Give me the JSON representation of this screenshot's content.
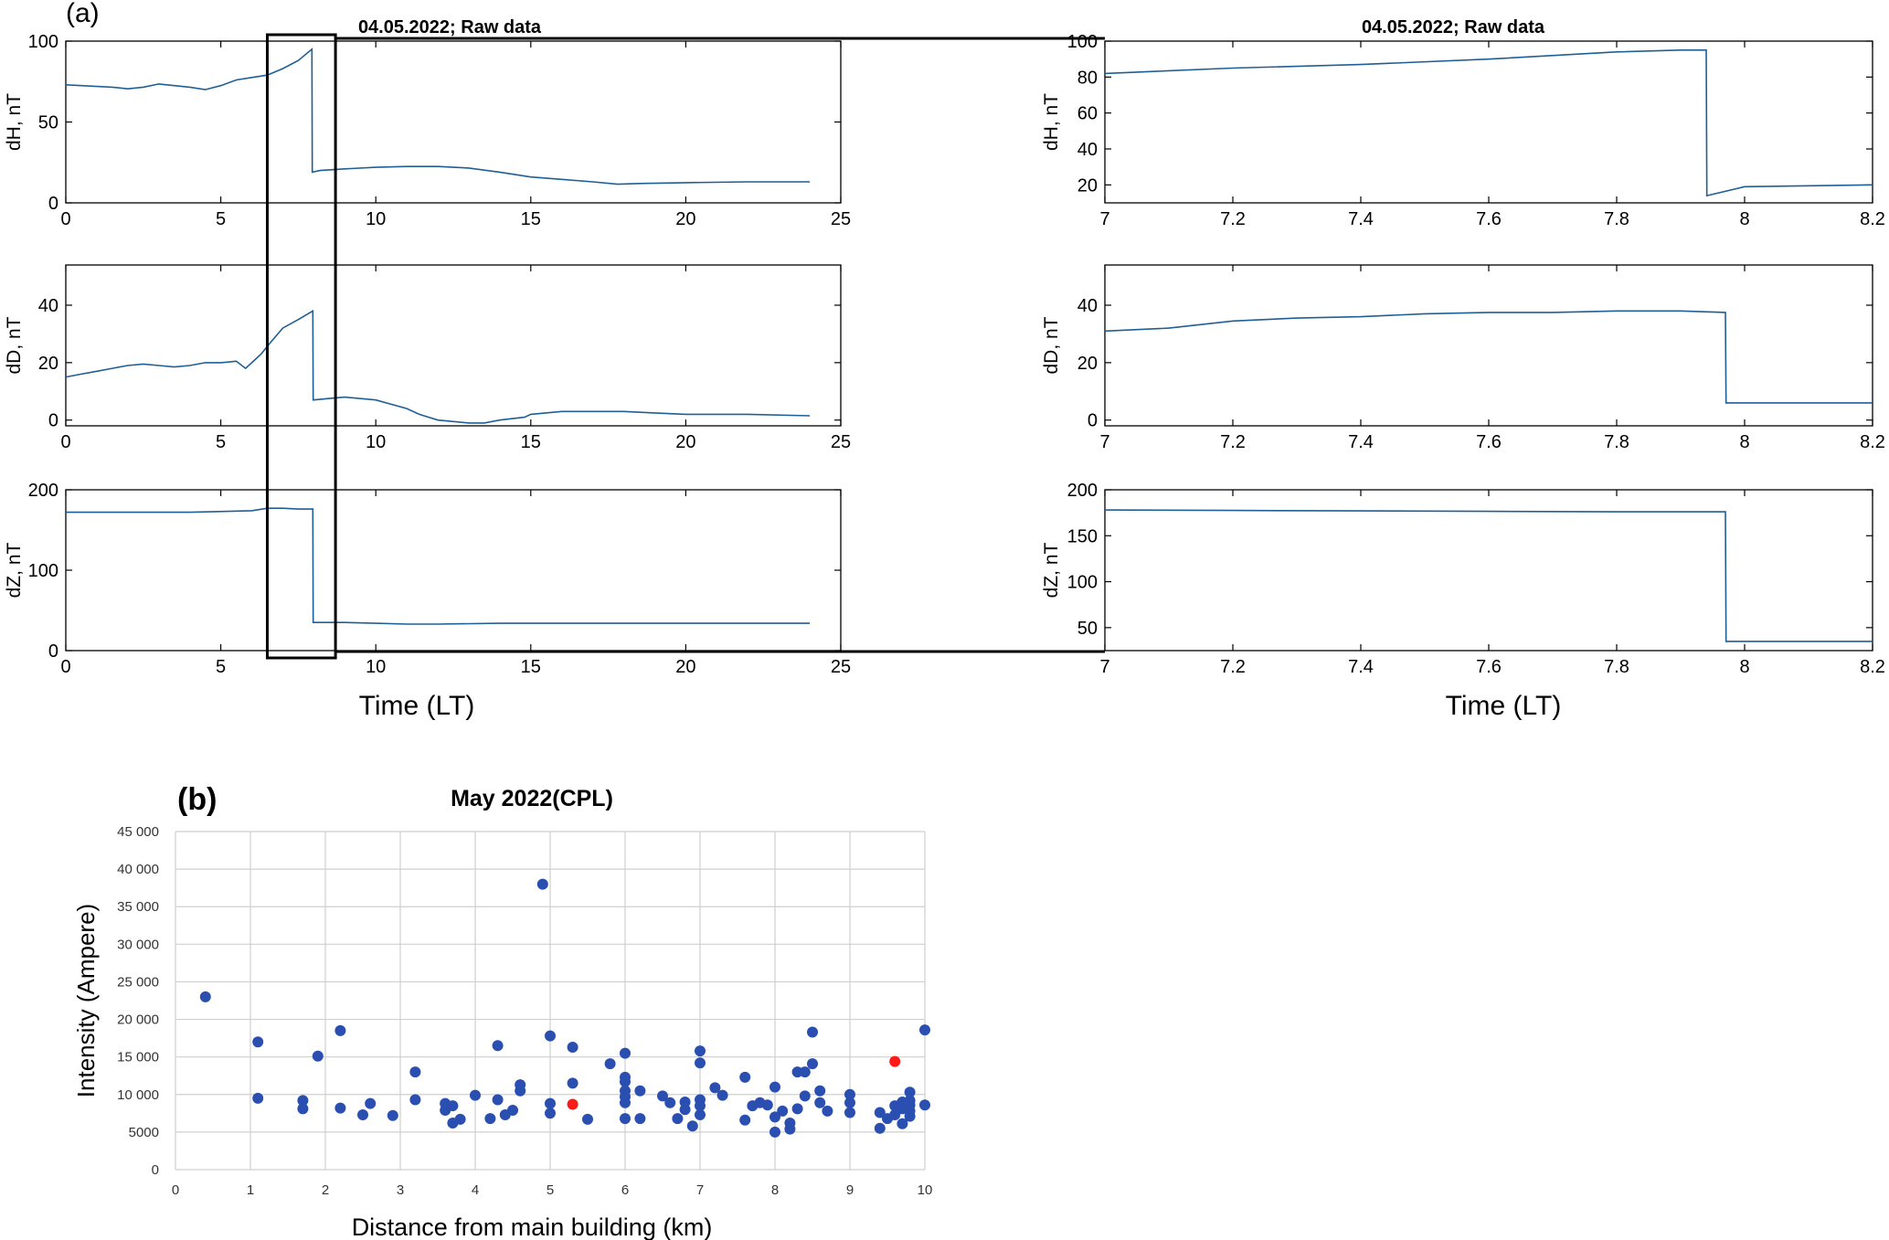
{
  "figure": {
    "panel_a_label": "(a)",
    "panel_b_label": "(b)",
    "colors": {
      "trace": "#1f5f96",
      "scatter_blue": "#2a4fb0",
      "scatter_red": "#ff1a1a",
      "grid": "#cfcfcf"
    }
  },
  "chart_data": [
    {
      "id": "a-left",
      "type": "line",
      "title": "04.05.2022;  Raw data",
      "xlabel": "Time (LT)",
      "xlim": [
        0,
        25
      ],
      "xticks": [
        0,
        5,
        10,
        15,
        20,
        25
      ],
      "highlight_box": {
        "x_from": 6.5,
        "x_to": 8.7
      },
      "panels": [
        {
          "ylabel": "dH, nT",
          "ylim": [
            0,
            100
          ],
          "yticks": [
            0,
            50,
            100
          ],
          "series": [
            {
              "x": [
                0,
                0.5,
                1,
                1.5,
                2,
                2.5,
                3,
                3.5,
                4,
                4.5,
                5,
                5.5,
                6,
                6.5,
                7,
                7.5,
                7.94,
                7.95,
                8.2,
                9,
                10,
                11,
                12,
                13,
                14,
                15,
                16,
                17,
                17.8,
                18.5,
                20,
                22,
                24
              ],
              "y": [
                73,
                72.5,
                72,
                71.5,
                70.5,
                71.5,
                73.5,
                72.5,
                71.5,
                70,
                72.5,
                76,
                77.5,
                79,
                83,
                88,
                95,
                19,
                20,
                21,
                22,
                22.5,
                22.5,
                21.5,
                19,
                16,
                14.5,
                13,
                11.5,
                12,
                12.5,
                13,
                13
              ]
            }
          ]
        },
        {
          "ylabel": "dD, nT",
          "ylim": [
            -2,
            54
          ],
          "yticks": [
            0,
            20,
            40
          ],
          "series": [
            {
              "x": [
                0,
                0.5,
                1,
                1.5,
                2,
                2.5,
                3,
                3.5,
                4,
                4.5,
                5,
                5.5,
                5.8,
                6,
                6.3,
                6.6,
                7,
                7.5,
                7.97,
                7.98,
                8.5,
                9,
                10,
                11,
                11.4,
                12,
                13,
                13.5,
                14,
                14.8,
                15,
                16,
                17,
                18,
                19,
                20,
                22,
                24
              ],
              "y": [
                15,
                16,
                17,
                18,
                19,
                19.5,
                19,
                18.5,
                19,
                20,
                20,
                20.5,
                18,
                20,
                23,
                27,
                32,
                35,
                38,
                7,
                7.5,
                8,
                7,
                4,
                2,
                0,
                -1,
                -1,
                0,
                1,
                2,
                3,
                3,
                3,
                2.5,
                2,
                2,
                1.5
              ]
            }
          ]
        },
        {
          "ylabel": "dZ, nT",
          "ylim": [
            0,
            200
          ],
          "yticks": [
            0,
            100,
            200
          ],
          "series": [
            {
              "x": [
                0,
                2,
                4,
                6,
                6.5,
                7,
                7.5,
                7.97,
                7.98,
                8.5,
                9,
                10,
                11,
                12,
                14,
                16,
                18,
                20,
                22,
                24
              ],
              "y": [
                172,
                172,
                172,
                174,
                177,
                177,
                176,
                176,
                35,
                35,
                35,
                34,
                33,
                33,
                34,
                34,
                34,
                34,
                34,
                34
              ]
            }
          ]
        }
      ]
    },
    {
      "id": "a-right",
      "type": "line",
      "title": "04.05.2022;  Raw data",
      "xlabel": "Time (LT)",
      "xlim": [
        7,
        8.2
      ],
      "xticks": [
        7,
        7.2,
        7.4,
        7.6,
        7.8,
        8,
        8.2
      ],
      "panels": [
        {
          "ylabel": "dH, nT",
          "ylim": [
            10,
            100
          ],
          "yticks": [
            20,
            40,
            60,
            80,
            100
          ],
          "series": [
            {
              "x": [
                7,
                7.2,
                7.4,
                7.6,
                7.8,
                7.9,
                7.94,
                7.941,
                8.0,
                8.2
              ],
              "y": [
                82,
                85,
                87,
                90,
                94,
                95,
                95,
                14,
                19,
                20
              ]
            }
          ]
        },
        {
          "ylabel": "dD, nT",
          "ylim": [
            -2,
            54
          ],
          "yticks": [
            0,
            20,
            40
          ],
          "series": [
            {
              "x": [
                7,
                7.1,
                7.2,
                7.3,
                7.4,
                7.5,
                7.6,
                7.7,
                7.8,
                7.9,
                7.97,
                7.971,
                8.2
              ],
              "y": [
                31,
                32,
                34.5,
                35.5,
                36,
                37,
                37.5,
                37.5,
                38,
                38,
                37.5,
                6,
                6
              ]
            }
          ]
        },
        {
          "ylabel": "dZ, nT",
          "ylim": [
            25,
            200
          ],
          "yticks": [
            50,
            100,
            150,
            200
          ],
          "series": [
            {
              "x": [
                7,
                7.2,
                7.4,
                7.6,
                7.8,
                7.97,
                7.971,
                8.2
              ],
              "y": [
                178,
                177.5,
                177,
                176.5,
                176,
                176,
                35,
                35
              ]
            }
          ]
        }
      ]
    },
    {
      "id": "b",
      "type": "scatter",
      "title": "May 2022(CPL)",
      "xlabel": "Distance from main building (km)",
      "ylabel": "Intensity (Ampere)",
      "xlim": [
        0,
        10
      ],
      "ylim": [
        0,
        45000
      ],
      "grid": true,
      "xticks": [
        0,
        1,
        2,
        3,
        4,
        5,
        6,
        7,
        8,
        9,
        10
      ],
      "yticks": [
        0,
        5000,
        10000,
        15000,
        20000,
        25000,
        30000,
        35000,
        40000,
        45000
      ],
      "ytick_labels": [
        "0",
        "5000",
        "10 000",
        "15 000",
        "20 000",
        "25 000",
        "30 000",
        "35 000",
        "40 000",
        "45 000"
      ],
      "series": [
        {
          "x": [
            0.4,
            1.1,
            1.1,
            1.7,
            1.7,
            1.9,
            2.2,
            2.2,
            2.5,
            2.6,
            2.9,
            3.2,
            3.2,
            3.6,
            3.6,
            3.7,
            3.7,
            3.8,
            4.0,
            4.2,
            4.3,
            4.3,
            4.4,
            4.5,
            4.6,
            4.6,
            4.9,
            5.0,
            5.0,
            5.0,
            5.3,
            5.3,
            5.5,
            5.8,
            6.0,
            6.0,
            6.0,
            6.0,
            6.0,
            6.0,
            6.0,
            6.2,
            6.2,
            6.5,
            6.6,
            6.7,
            6.8,
            6.8,
            6.9,
            7.0,
            7.0,
            7.0,
            7.0,
            7.0,
            7.2,
            7.3,
            7.6,
            7.6,
            7.7,
            7.8,
            7.9,
            8.0,
            8.0,
            8.0,
            8.1,
            8.2,
            8.2,
            8.3,
            8.3,
            8.4,
            8.4,
            8.5,
            8.5,
            8.6,
            8.6,
            8.7,
            9.0,
            9.0,
            9.0,
            9.4,
            9.4,
            9.5,
            9.6,
            9.6,
            9.7,
            9.7,
            9.7,
            9.8,
            9.8,
            9.8,
            9.8,
            9.8,
            10.0,
            10.0
          ],
          "y": [
            23000,
            17000,
            9500,
            9200,
            8100,
            15100,
            18500,
            8200,
            7300,
            8800,
            7200,
            13000,
            9300,
            8800,
            7900,
            8500,
            6200,
            6700,
            9900,
            6800,
            16500,
            9300,
            7300,
            7900,
            10500,
            11300,
            38000,
            17800,
            8800,
            7500,
            16300,
            11500,
            6700,
            14100,
            15500,
            12300,
            11700,
            10500,
            9700,
            8900,
            6800,
            10500,
            6800,
            9800,
            8900,
            6800,
            9000,
            8000,
            5800,
            15800,
            14200,
            9300,
            8500,
            7300,
            10900,
            9900,
            12300,
            6600,
            8500,
            8900,
            8600,
            11000,
            7000,
            5000,
            7800,
            6200,
            5400,
            8100,
            13000,
            13000,
            9800,
            14100,
            18300,
            10500,
            8900,
            7800,
            10000,
            8900,
            7600,
            7600,
            5500,
            6800,
            8500,
            7300,
            6100,
            9000,
            8100,
            9200,
            8600,
            7800,
            7100,
            10300,
            18600,
            8600
          ],
          "color": "#2a4fb0"
        },
        {
          "x": [
            5.3,
            9.6
          ],
          "y": [
            8700,
            14400
          ],
          "color": "#ff1a1a"
        }
      ]
    }
  ]
}
